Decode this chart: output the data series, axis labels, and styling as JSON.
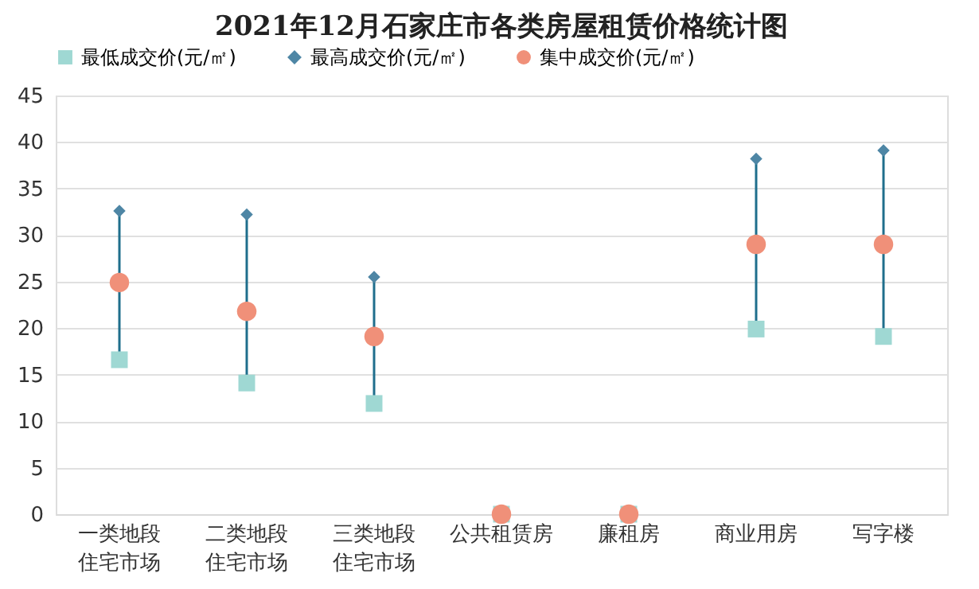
{
  "chart_data": {
    "type": "scatter",
    "title": "2021年12月石家庄市各类房屋租赁价格统计图",
    "categories": [
      "一类地段住宅市场",
      "二类地段住宅市场",
      "三类地段住宅市场",
      "公共租赁房",
      "廉租房",
      "商业用房",
      "写字楼"
    ],
    "series": [
      {
        "name": "最低成交价(元/㎡)",
        "color": "#9fd8d3",
        "marker": "square",
        "values": [
          16.6,
          14.1,
          11.9,
          0,
          0,
          19.9,
          19.1
        ]
      },
      {
        "name": "最高成交价(元/㎡)",
        "color": "#4e86a5",
        "marker": "diamond",
        "values": [
          32.6,
          32.2,
          25.5,
          null,
          null,
          38.2,
          39.1
        ]
      },
      {
        "name": "集中成交价(元/㎡)",
        "color": "#f09079",
        "marker": "circle",
        "values": [
          24.9,
          21.8,
          19.1,
          0,
          0,
          29,
          29
        ]
      }
    ],
    "ylim": [
      0,
      45
    ],
    "yticks": [
      0,
      5,
      10,
      15,
      20,
      25,
      30,
      35,
      40,
      45
    ],
    "grid": "y",
    "legend": "top"
  }
}
